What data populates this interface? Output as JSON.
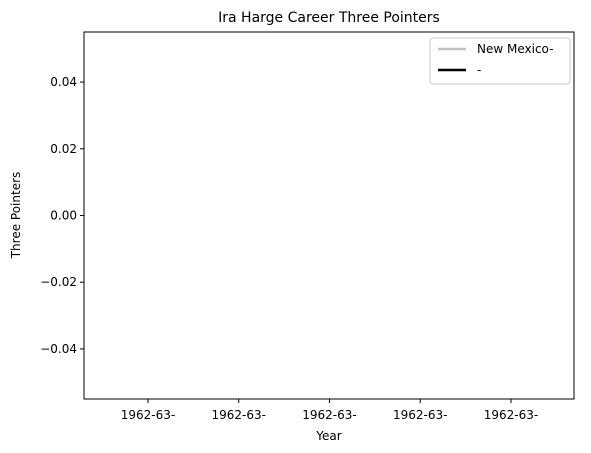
{
  "chart_data": {
    "type": "line",
    "title": "Ira Harge Career Three Pointers",
    "xlabel": "Year",
    "ylabel": "Three Pointers",
    "x_tick_labels": [
      "1962-63-",
      "1962-63-",
      "1962-63-",
      "1962-63-",
      "1962-63-"
    ],
    "y_ticks": [
      -0.04,
      -0.02,
      0.0,
      0.02,
      0.04
    ],
    "y_tick_labels": [
      "−0.04",
      "−0.02",
      "0.00",
      "0.02",
      "0.04"
    ],
    "ylim": [
      -0.055,
      0.055
    ],
    "grid": false,
    "legend_position": "top-right",
    "series": [
      {
        "name": "New Mexico-",
        "color": "#bfbfbf",
        "values": []
      },
      {
        "name": "-",
        "color": "#000000",
        "values": []
      }
    ]
  }
}
